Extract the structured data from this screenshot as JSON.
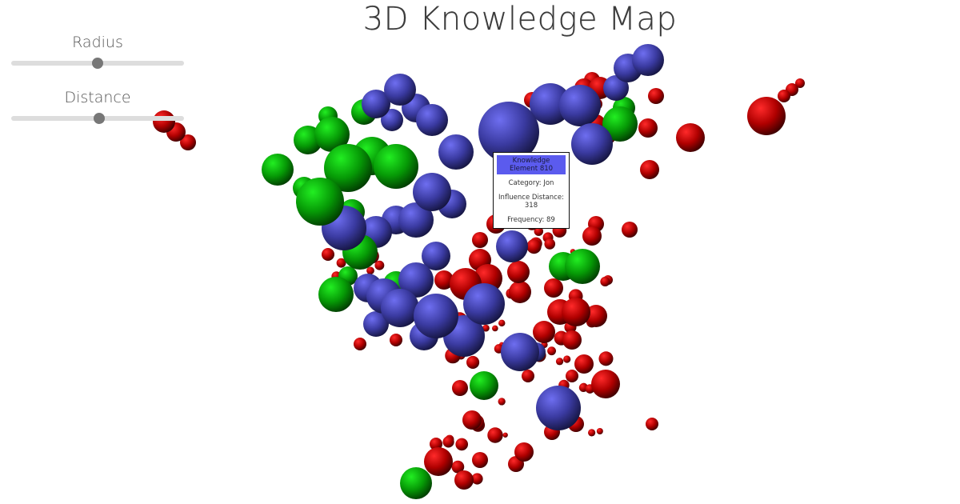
{
  "page": {
    "title": "3D Knowledge Map"
  },
  "controls": {
    "radius": {
      "label": "Radius",
      "value": 0.5
    },
    "distance": {
      "label": "Distance",
      "value": 0.5
    }
  },
  "tooltip": {
    "header": "Knowledge Element 810",
    "category": "Category: Jon",
    "influence": "Influence Distance: 318",
    "frequency": "Frequency: 89"
  },
  "legend_colors": {
    "red": "#c00000",
    "green": "#00b000",
    "blue": "#5050c8",
    "tooltip_header": "#5b5bee"
  }
}
